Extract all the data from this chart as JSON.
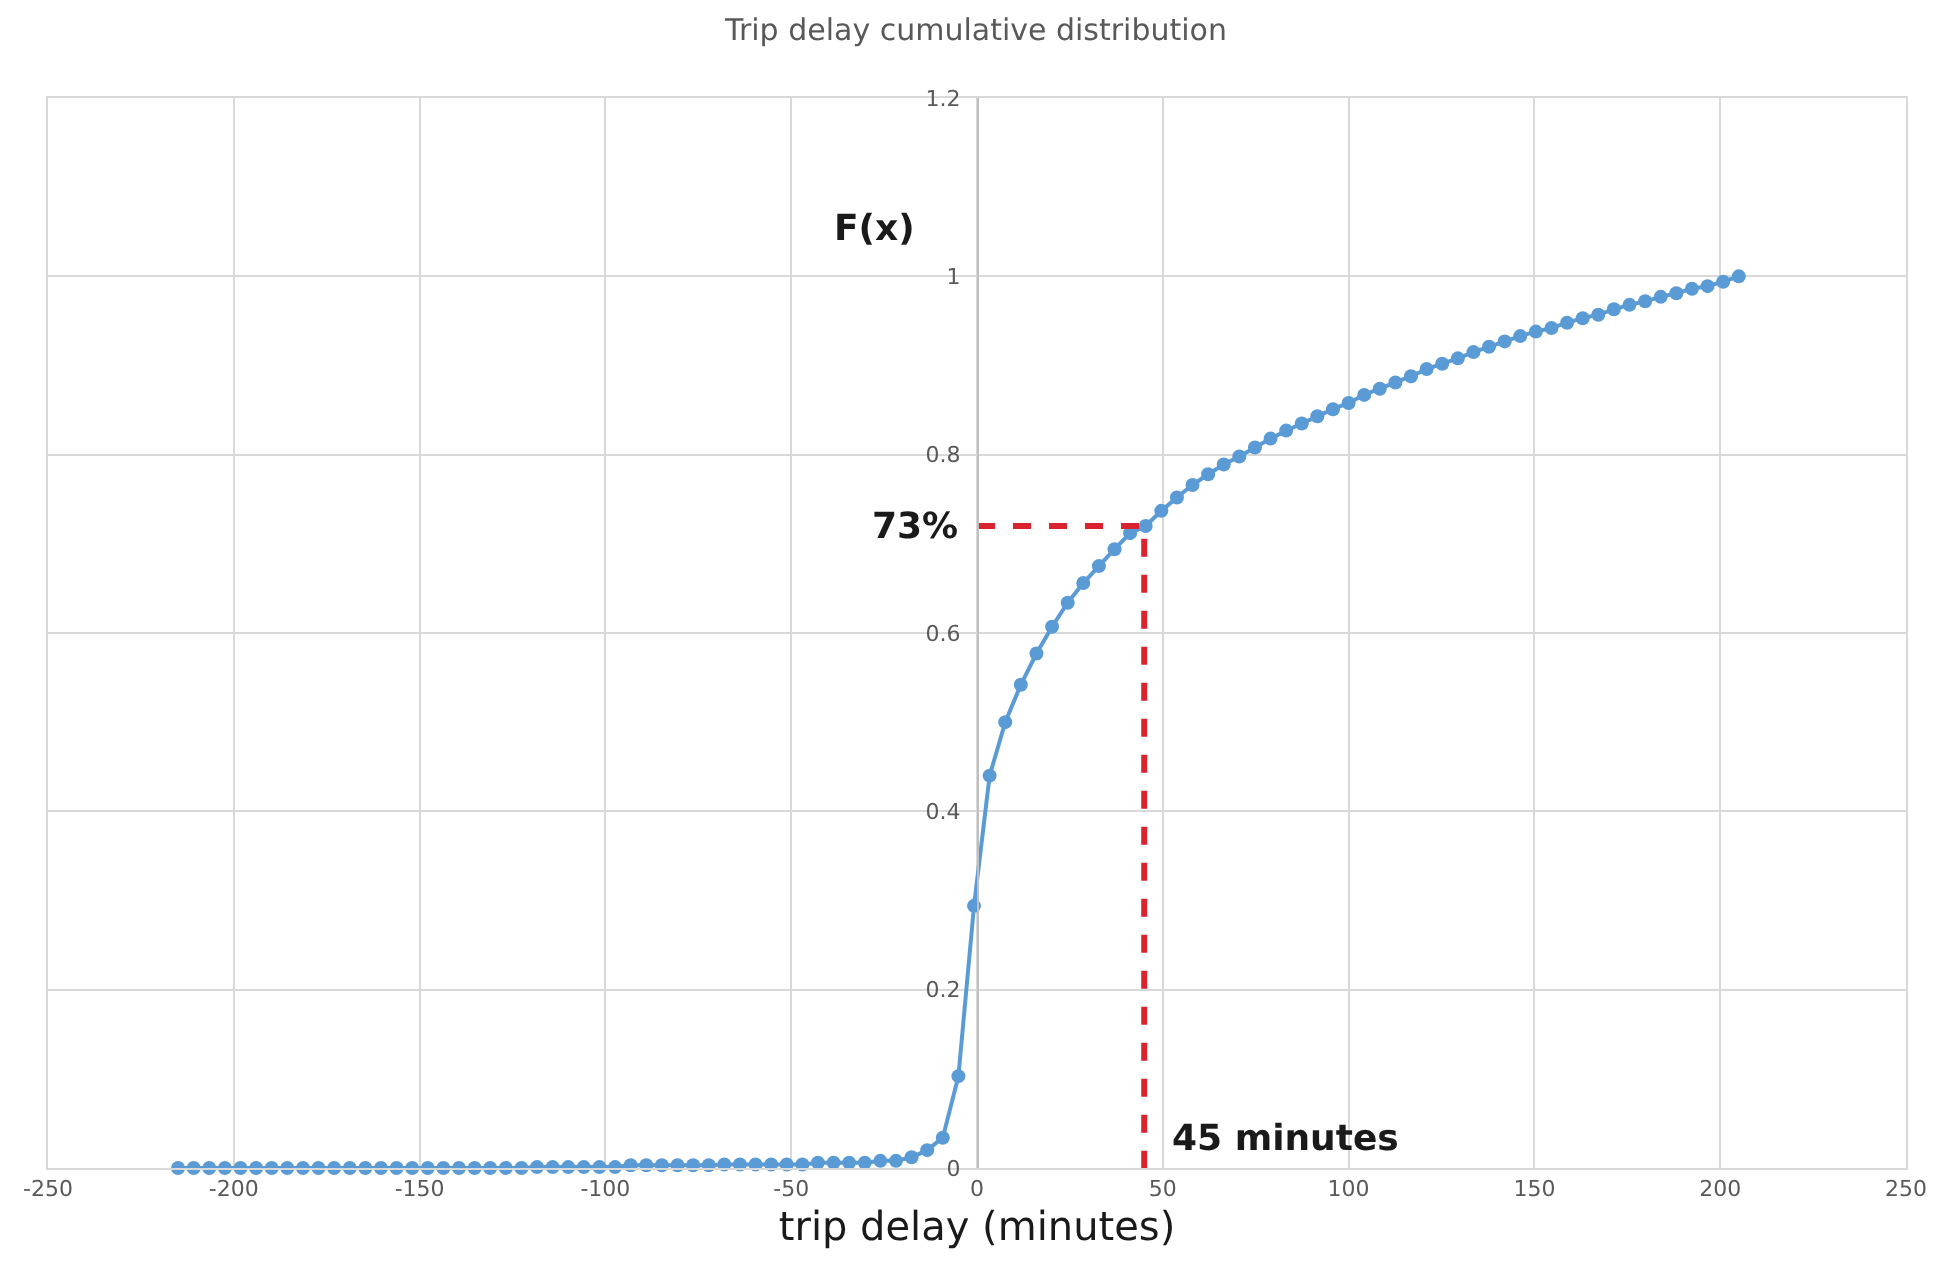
{
  "chart_data": {
    "type": "line",
    "title": "Trip delay cumulative distribution",
    "xlabel": "trip delay (minutes)",
    "ylabel": "F(x)",
    "xlim": [
      -250,
      250
    ],
    "xticks": [
      -250,
      -200,
      -150,
      -100,
      -50,
      0,
      50,
      100,
      150,
      200,
      250
    ],
    "ylim": [
      0,
      1.2
    ],
    "yticks": [
      0,
      0.2,
      0.4,
      0.6,
      0.8,
      1,
      1.2
    ],
    "grid": true,
    "marker": "circle",
    "series": [
      {
        "color": "#5b9bd5",
        "x": [
          -215,
          -210.8,
          -206.6,
          -202.4,
          -198.2,
          -194,
          -189.8,
          -185.6,
          -181.4,
          -177.2,
          -173,
          -168.8,
          -164.6,
          -160.4,
          -156.2,
          -152,
          -147.8,
          -143.6,
          -139.4,
          -135.2,
          -131,
          -126.8,
          -122.6,
          -118.4,
          -114.2,
          -110,
          -105.8,
          -101.6,
          -97.4,
          -93.2,
          -89,
          -84.8,
          -80.6,
          -76.4,
          -72.2,
          -68,
          -63.8,
          -59.6,
          -55.4,
          -51.2,
          -47,
          -42.8,
          -38.6,
          -34.4,
          -30.2,
          -26,
          -21.8,
          -17.6,
          -13.4,
          -9.2,
          -5,
          -0.8,
          3.4,
          7.6,
          11.8,
          16,
          20.2,
          24.4,
          28.6,
          32.8,
          37,
          41.2,
          45.4,
          49.6,
          53.8,
          58,
          62.2,
          66.4,
          70.6,
          74.8,
          79,
          83.2,
          87.4,
          91.6,
          95.8,
          100,
          104.2,
          108.4,
          112.6,
          116.8,
          121,
          125.2,
          129.4,
          133.6,
          137.8,
          142,
          146.2,
          150.4,
          154.6,
          158.8,
          163,
          167.2,
          171.4,
          175.6,
          179.8,
          184,
          188.2,
          192.4,
          196.6,
          200.8,
          205
        ],
        "values": [
          0,
          0,
          0,
          0,
          0,
          0,
          0,
          0,
          0,
          0,
          0,
          0,
          0,
          0,
          0,
          0,
          0,
          0,
          0,
          0,
          0,
          0,
          0,
          0.001,
          0.001,
          0.001,
          0.001,
          0.001,
          0.001,
          0.003,
          0.003,
          0.003,
          0.003,
          0.003,
          0.003,
          0.004,
          0.004,
          0.004,
          0.004,
          0.004,
          0.004,
          0.006,
          0.006,
          0.006,
          0.006,
          0.008,
          0.008,
          0.012,
          0.02,
          0.034,
          0.103,
          0.294,
          0.44,
          0.5,
          0.542,
          0.577,
          0.607,
          0.634,
          0.656,
          0.675,
          0.694,
          0.712,
          0.72,
          0.737,
          0.752,
          0.766,
          0.778,
          0.789,
          0.798,
          0.808,
          0.818,
          0.827,
          0.835,
          0.843,
          0.851,
          0.858,
          0.867,
          0.874,
          0.881,
          0.888,
          0.896,
          0.902,
          0.908,
          0.915,
          0.921,
          0.927,
          0.933,
          0.938,
          0.942,
          0.948,
          0.953,
          0.957,
          0.963,
          0.968,
          0.972,
          0.977,
          0.981,
          0.986,
          0.989,
          0.994,
          1.0
        ]
      },
      {
        "color": "#d9232e",
        "marker": "none",
        "line_style": "dashed",
        "x": [
          0,
          45,
          45
        ],
        "values": [
          0.72,
          0.72,
          0
        ]
      }
    ],
    "annotations": [
      {
        "text": "73%",
        "x": 0,
        "y": 0.72
      },
      {
        "text": "45 minutes",
        "x": 45,
        "y": 0
      }
    ]
  }
}
